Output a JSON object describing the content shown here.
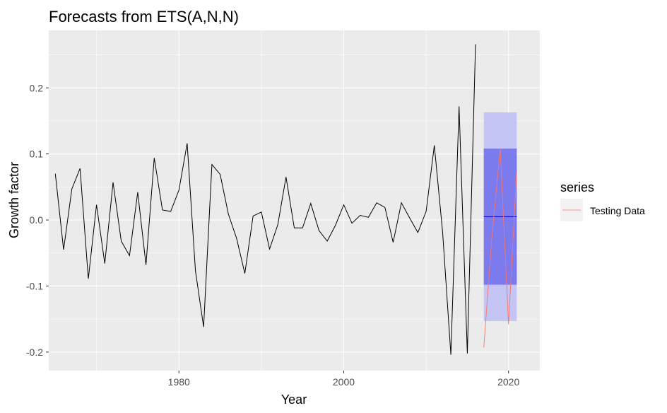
{
  "chart_data": {
    "type": "line",
    "title": "Forecasts from ETS(A,N,N)",
    "xlabel": "Year",
    "ylabel": "Growth factor",
    "xlim": [
      1964.2,
      2023.8
    ],
    "ylim": [
      -0.228,
      0.287
    ],
    "x_ticks": [
      1980,
      2000,
      2020
    ],
    "y_ticks": [
      -0.2,
      -0.1,
      0.0,
      0.1,
      0.2
    ],
    "x_tick_labels": [
      "1980",
      "2000",
      "2020"
    ],
    "y_tick_labels": [
      "-0.2",
      "-0.1",
      "0.0",
      "0.1",
      "0.2"
    ],
    "grid": true,
    "legend": {
      "title": "series",
      "position": "right",
      "entries": [
        "Testing Data"
      ]
    },
    "colors": {
      "panel": "#ebebeb",
      "grid": "#ffffff",
      "history": "#000000",
      "testing": "#f8766d",
      "forecast": "#0000cc",
      "band80": "#7b7bed",
      "band95": "#c4c4f5",
      "legend_key_bg": "#f2f2f2"
    },
    "history": {
      "name": "History",
      "x": [
        1965,
        1966,
        1967,
        1968,
        1969,
        1970,
        1971,
        1972,
        1973,
        1974,
        1975,
        1976,
        1977,
        1978,
        1979,
        1980,
        1981,
        1982,
        1983,
        1984,
        1985,
        1986,
        1987,
        1988,
        1989,
        1990,
        1991,
        1992,
        1993,
        1994,
        1995,
        1996,
        1997,
        1998,
        1999,
        2000,
        2001,
        2002,
        2003,
        2004,
        2005,
        2006,
        2007,
        2008,
        2009,
        2010,
        2011,
        2012,
        2013,
        2014,
        2015,
        2016
      ],
      "y": [
        0.07,
        -0.045,
        0.047,
        0.078,
        -0.089,
        0.023,
        -0.066,
        0.057,
        -0.032,
        -0.054,
        0.042,
        -0.068,
        0.094,
        0.015,
        0.013,
        0.045,
        0.116,
        -0.077,
        -0.162,
        0.084,
        0.069,
        0.009,
        -0.028,
        -0.081,
        0.006,
        0.012,
        -0.044,
        -0.007,
        0.065,
        -0.012,
        -0.012,
        0.025,
        -0.016,
        -0.032,
        -0.008,
        0.023,
        -0.005,
        0.007,
        0.004,
        0.026,
        0.019,
        -0.034,
        0.026,
        0.003,
        -0.019,
        0.013,
        0.113,
        -0.018,
        -0.204,
        0.172,
        -0.202,
        0.266
      ]
    },
    "testing_data": {
      "name": "Testing Data",
      "x": [
        2017,
        2018,
        2019,
        2020,
        2021
      ],
      "y": [
        -0.193,
        -0.023,
        0.108,
        -0.158,
        0.076
      ]
    },
    "forecast": {
      "x_start": 2017,
      "x_end": 2021,
      "point": 0.005,
      "lo80": -0.098,
      "hi80": 0.108,
      "lo95": -0.153,
      "hi95": 0.163
    }
  }
}
